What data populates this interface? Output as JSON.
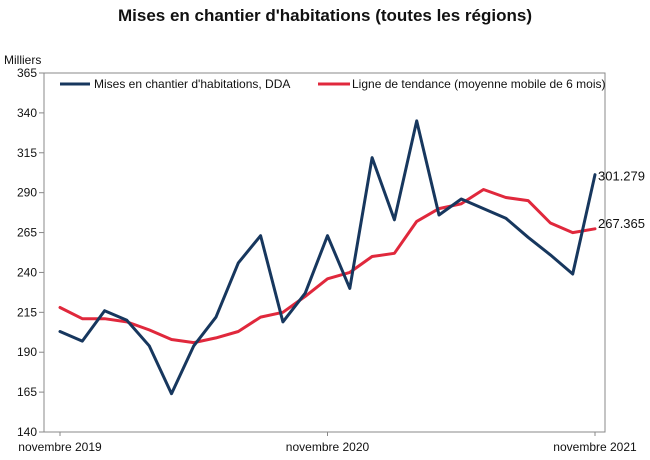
{
  "chart_data": {
    "type": "line",
    "title": "Mises en chantier d'habitations (toutes les régions)",
    "ylabel": "Milliers",
    "ylim": [
      140,
      365
    ],
    "y_ticks": [
      140,
      165,
      190,
      215,
      240,
      265,
      290,
      315,
      340,
      365
    ],
    "x_tick_labels": [
      "novembre 2019",
      "novembre 2020",
      "novembre 2021"
    ],
    "x": [
      "2019-11",
      "2019-12",
      "2020-01",
      "2020-02",
      "2020-03",
      "2020-04",
      "2020-05",
      "2020-06",
      "2020-07",
      "2020-08",
      "2020-09",
      "2020-10",
      "2020-11",
      "2020-12",
      "2021-01",
      "2021-02",
      "2021-03",
      "2021-04",
      "2021-05",
      "2021-06",
      "2021-07",
      "2021-08",
      "2021-09",
      "2021-10",
      "2021-11"
    ],
    "series": [
      {
        "name": "Mises en chantier d'habitations, DDA",
        "color": "#17375e",
        "values": [
          203,
          197,
          216,
          210,
          194,
          164,
          194,
          212,
          246,
          263,
          209,
          227,
          263,
          230,
          312,
          273,
          335,
          276,
          286,
          280,
          274,
          262,
          251,
          239,
          301.279
        ]
      },
      {
        "name": "Ligne de tendance (moyenne mobile de 6 mois)",
        "color": "#e0283c",
        "values": [
          218,
          211,
          211,
          209,
          204,
          198,
          196,
          199,
          203,
          212,
          215,
          225,
          236,
          240,
          250,
          252,
          272,
          280,
          283,
          292,
          287,
          285,
          271,
          265,
          267.365
        ]
      }
    ],
    "end_labels": [
      "301.279",
      "267.365"
    ],
    "legend_position": "top",
    "grid": false
  }
}
